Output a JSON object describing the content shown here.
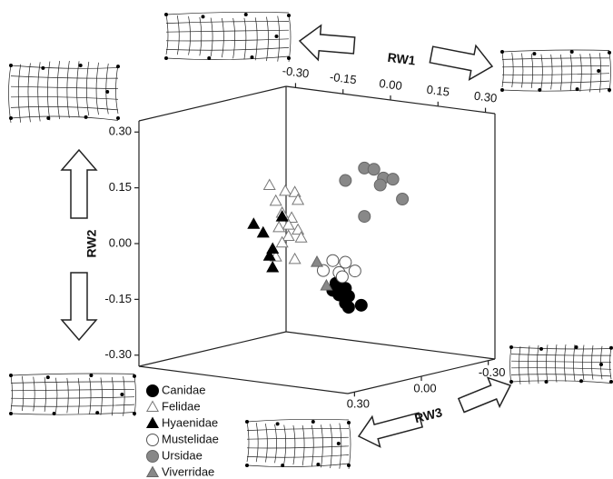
{
  "chart_data": {
    "type": "scatter3d",
    "xlabel": "RW1",
    "ylabel": "RW2",
    "zlabel": "RW3",
    "xlim": [
      -0.33,
      0.33
    ],
    "ylim": [
      -0.33,
      0.33
    ],
    "zlim": [
      -0.33,
      0.33
    ],
    "xticks": [
      {
        "value": -0.3,
        "label": "-0.30"
      },
      {
        "value": -0.15,
        "label": "-0.15"
      },
      {
        "value": 0,
        "label": "0.00"
      },
      {
        "value": 0.15,
        "label": "0.15"
      },
      {
        "value": 0.3,
        "label": "0.30"
      }
    ],
    "yticks": [
      {
        "value": 0.3,
        "label": "0.30"
      },
      {
        "value": 0.15,
        "label": "0.15"
      },
      {
        "value": 0,
        "label": "0.00"
      },
      {
        "value": -0.15,
        "label": "-0.15"
      },
      {
        "value": -0.3,
        "label": "-0.30"
      }
    ],
    "zticks": [
      {
        "value": -0.3,
        "label": "-0.30"
      },
      {
        "value": 0,
        "label": "0.00"
      },
      {
        "value": 0.3,
        "label": "0.30"
      }
    ],
    "series": [
      {
        "name": "Canidae",
        "marker": "circle",
        "color": "#000000",
        "edgecolor": "#000000",
        "x": [
          0.06,
          0.09,
          0.07,
          0.1,
          0.09,
          0.14,
          0.1,
          0.05
        ],
        "y": [
          -0.11,
          -0.12,
          -0.14,
          -0.14,
          -0.16,
          -0.16,
          -0.17,
          -0.13
        ],
        "z": [
          0,
          0,
          0,
          0,
          0,
          0,
          0,
          0
        ]
      },
      {
        "name": "Felidae",
        "marker": "triangle",
        "color": "#ffffff",
        "edgecolor": "#777777",
        "x": [
          -0.15,
          -0.1,
          -0.07,
          -0.13,
          -0.06,
          -0.11,
          -0.08,
          -0.09,
          -0.12,
          -0.06,
          -0.09,
          -0.05,
          -0.11,
          -0.07,
          -0.13
        ],
        "y": [
          0.13,
          0.12,
          0.12,
          0.09,
          0.1,
          0.06,
          0.05,
          0.03,
          0.02,
          0.02,
          0.0,
          0.0,
          -0.02,
          -0.06,
          -0.06
        ],
        "z": [
          0,
          0,
          0,
          0,
          0,
          0,
          0,
          0,
          0,
          0,
          0,
          0,
          0,
          0,
          0
        ]
      },
      {
        "name": "Hyaenidae",
        "marker": "triangle",
        "color": "#000000",
        "edgecolor": "#000000",
        "x": [
          -0.2,
          -0.17,
          -0.14,
          -0.15,
          -0.14,
          -0.11
        ],
        "y": [
          0.02,
          0.0,
          -0.04,
          -0.06,
          -0.09,
          0.05
        ],
        "z": [
          0,
          0,
          0,
          0,
          0,
          0
        ]
      },
      {
        "name": "Mustelidae",
        "marker": "circle",
        "color": "#ffffff",
        "edgecolor": "#555555",
        "x": [
          0.05,
          0.09,
          0.02,
          0.07,
          0.12,
          0.08
        ],
        "y": [
          -0.05,
          -0.05,
          -0.08,
          -0.08,
          -0.07,
          -0.09
        ],
        "z": [
          0,
          0,
          0,
          0,
          0,
          0
        ]
      },
      {
        "name": "Ursidae",
        "marker": "circle",
        "color": "#888888",
        "edgecolor": "#666666",
        "x": [
          0.09,
          0.15,
          0.18,
          0.21,
          0.2,
          0.24,
          0.27,
          0.15
        ],
        "y": [
          0.17,
          0.21,
          0.21,
          0.19,
          0.17,
          0.19,
          0.14,
          0.08
        ],
        "z": [
          0,
          0,
          0,
          0,
          0,
          0,
          0,
          0
        ]
      },
      {
        "name": "Viverridae",
        "marker": "triangle",
        "color": "#888888",
        "edgecolor": "#666666",
        "x": [
          0.0,
          0.03
        ],
        "y": [
          -0.06,
          -0.12
        ],
        "z": [
          0,
          0
        ]
      }
    ]
  }
}
